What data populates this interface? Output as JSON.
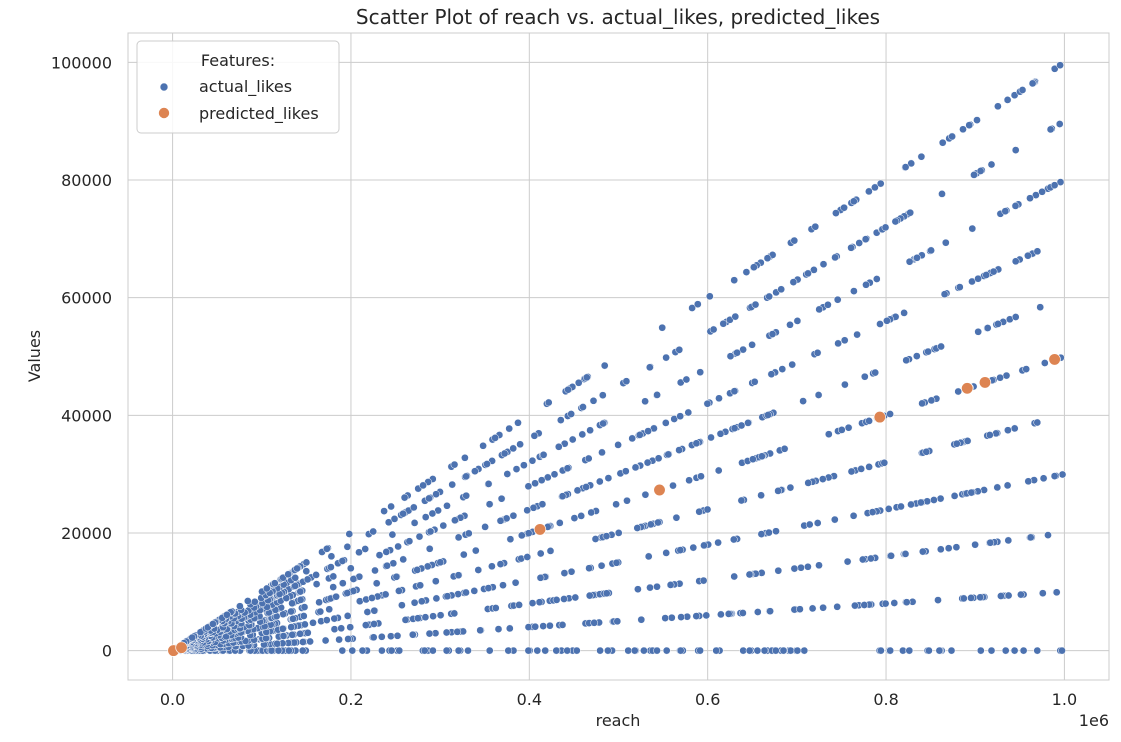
{
  "chart_data": {
    "type": "scatter",
    "title": "Scatter Plot of reach vs. actual_likes, predicted_likes",
    "xlabel": "reach",
    "ylabel": "Values",
    "x_offset_label": "1e6",
    "xlim": [
      -50000,
      1050000
    ],
    "ylim": [
      -5000,
      105000
    ],
    "x_ticks": [
      0,
      200000,
      400000,
      600000,
      800000,
      1000000
    ],
    "x_tick_labels": [
      "0.0",
      "0.2",
      "0.4",
      "0.6",
      "0.8",
      "1.0"
    ],
    "y_ticks": [
      0,
      20000,
      40000,
      60000,
      80000,
      100000
    ],
    "y_tick_labels": [
      "0",
      "20000",
      "40000",
      "60000",
      "80000",
      "100000"
    ],
    "grid": true,
    "legend": {
      "title": "Features:",
      "placement": "top-left",
      "entries": [
        "actual_likes",
        "predicted_likes"
      ]
    },
    "series": [
      {
        "name": "actual_likes",
        "color": "#4c72b0",
        "pattern": "points lie along lines y = r × reach, r in 0.00–0.10 (step 0.01), reach 0–1,000,000",
        "rates": [
          0.0,
          0.01,
          0.02,
          0.03,
          0.04,
          0.05,
          0.06,
          0.07,
          0.08,
          0.09,
          0.1
        ]
      },
      {
        "name": "predicted_likes",
        "color": "#dd8452",
        "points": [
          [
            1000,
            0
          ],
          [
            10000,
            500
          ],
          [
            412000,
            20600
          ],
          [
            546000,
            27300
          ],
          [
            793000,
            39700
          ],
          [
            891000,
            44600
          ],
          [
            911000,
            45600
          ],
          [
            989000,
            49500
          ]
        ]
      }
    ]
  }
}
